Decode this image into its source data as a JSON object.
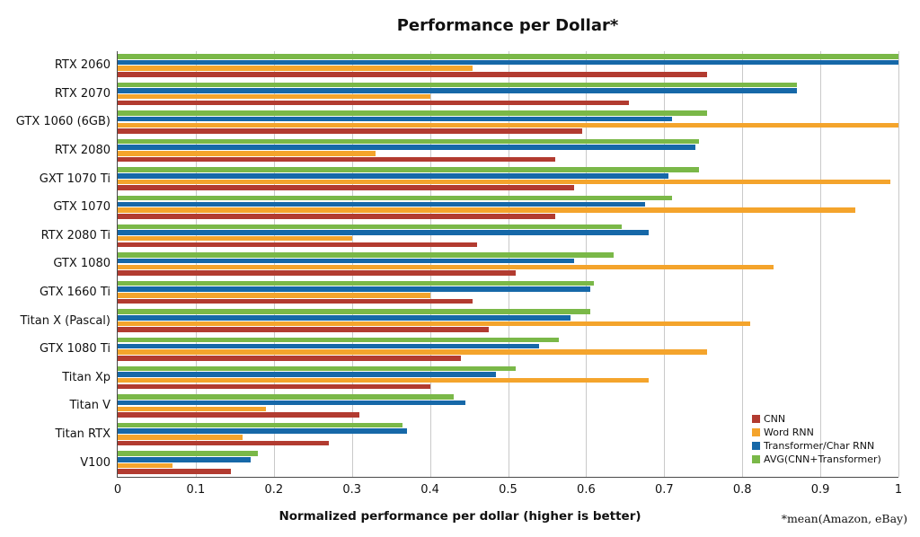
{
  "chart_data": {
    "type": "bar",
    "orientation": "horizontal",
    "title": "Performance per Dollar*",
    "xlabel": "Normalized performance per dollar (higher is better)",
    "footnote": "*mean(Amazon, eBay)",
    "xlim": [
      0,
      1
    ],
    "xticks": [
      "0",
      "0.1",
      "0.2",
      "0.3",
      "0.4",
      "0.5",
      "0.6",
      "0.7",
      "0.8",
      "0.9",
      "1"
    ],
    "grid": true,
    "legend_position": "lower right",
    "categories": [
      "RTX 2060",
      "RTX 2070",
      "GTX 1060 (6GB)",
      "RTX 2080",
      "GXT 1070 Ti",
      "GTX 1070",
      "RTX 2080 Ti",
      "GTX 1080",
      "GTX 1660 Ti",
      "Titan X (Pascal)",
      "GTX 1080 Ti",
      "Titan Xp",
      "Titan V",
      "Titan RTX",
      "V100"
    ],
    "series": [
      {
        "name": "CNN",
        "color": "#b23b30",
        "values": [
          0.755,
          0.655,
          0.595,
          0.56,
          0.585,
          0.56,
          0.46,
          0.51,
          0.455,
          0.475,
          0.44,
          0.4,
          0.31,
          0.27,
          0.145
        ]
      },
      {
        "name": "Word RNN",
        "color": "#f4a42c",
        "values": [
          0.455,
          0.4,
          1.0,
          0.33,
          0.99,
          0.945,
          0.3,
          0.84,
          0.4,
          0.81,
          0.755,
          0.68,
          0.19,
          0.16,
          0.07
        ]
      },
      {
        "name": "Transformer/Char RNN",
        "color": "#1668a8",
        "values": [
          1.0,
          0.87,
          0.71,
          0.74,
          0.705,
          0.675,
          0.68,
          0.585,
          0.605,
          0.58,
          0.54,
          0.485,
          0.445,
          0.37,
          0.17
        ]
      },
      {
        "name": "AVG(CNN+Transformer)",
        "color": "#7ab848",
        "values": [
          1.0,
          0.87,
          0.755,
          0.745,
          0.745,
          0.71,
          0.645,
          0.635,
          0.61,
          0.605,
          0.565,
          0.51,
          0.43,
          0.365,
          0.18
        ]
      }
    ],
    "bar_draw_order_top_to_bottom": [
      "AVG(CNN+Transformer)",
      "Transformer/Char RNN",
      "Word RNN",
      "CNN"
    ]
  }
}
